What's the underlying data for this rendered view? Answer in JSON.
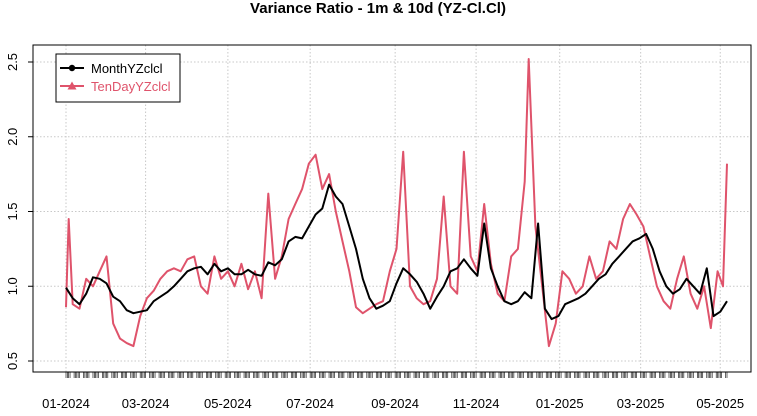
{
  "chart_data": {
    "type": "line",
    "title": "Variance Ratio - 1m & 10d (YZ-Cl.Cl)",
    "xlabel": "",
    "ylabel": "",
    "xlim": [
      "2023-12-28",
      "2025-05-08"
    ],
    "ylim": [
      0.5,
      2.6
    ],
    "yticks": [
      0.5,
      1.0,
      1.5,
      2.0,
      2.5
    ],
    "ytick_labels": [
      "0.5",
      "1.0",
      "1.5",
      "2.0",
      "2.5"
    ],
    "xtick_dates": [
      "2024-01-02",
      "2024-03-01",
      "2024-05-01",
      "2024-07-01",
      "2024-09-02",
      "2024-11-01",
      "2025-01-02",
      "2025-03-03",
      "2025-05-01"
    ],
    "xtick_labels": [
      "01-2024",
      "03-2024",
      "05-2024",
      "07-2024",
      "09-2024",
      "11-2024",
      "01-2025",
      "03-2025",
      "05-2025"
    ],
    "grid": true,
    "legend_position": "top-left",
    "series": [
      {
        "name": "MonthYZclcl",
        "color": "#000000",
        "marker": "circle",
        "points": [
          [
            "2024-01-02",
            0.99
          ],
          [
            "2024-01-07",
            0.92
          ],
          [
            "2024-01-12",
            0.88
          ],
          [
            "2024-01-17",
            0.95
          ],
          [
            "2024-01-22",
            1.06
          ],
          [
            "2024-01-27",
            1.05
          ],
          [
            "2024-02-01",
            1.02
          ],
          [
            "2024-02-06",
            0.93
          ],
          [
            "2024-02-11",
            0.9
          ],
          [
            "2024-02-16",
            0.84
          ],
          [
            "2024-02-21",
            0.82
          ],
          [
            "2024-02-26",
            0.83
          ],
          [
            "2024-03-02",
            0.84
          ],
          [
            "2024-03-07",
            0.9
          ],
          [
            "2024-03-12",
            0.93
          ],
          [
            "2024-03-17",
            0.96
          ],
          [
            "2024-03-22",
            1.0
          ],
          [
            "2024-03-27",
            1.05
          ],
          [
            "2024-04-01",
            1.1
          ],
          [
            "2024-04-06",
            1.12
          ],
          [
            "2024-04-11",
            1.13
          ],
          [
            "2024-04-16",
            1.08
          ],
          [
            "2024-04-21",
            1.15
          ],
          [
            "2024-04-26",
            1.1
          ],
          [
            "2024-05-01",
            1.12
          ],
          [
            "2024-05-06",
            1.08
          ],
          [
            "2024-05-11",
            1.08
          ],
          [
            "2024-05-16",
            1.11
          ],
          [
            "2024-05-21",
            1.08
          ],
          [
            "2024-05-26",
            1.07
          ],
          [
            "2024-05-31",
            1.16
          ],
          [
            "2024-06-05",
            1.14
          ],
          [
            "2024-06-10",
            1.18
          ],
          [
            "2024-06-15",
            1.3
          ],
          [
            "2024-06-20",
            1.33
          ],
          [
            "2024-06-25",
            1.32
          ],
          [
            "2024-06-30",
            1.4
          ],
          [
            "2024-07-05",
            1.48
          ],
          [
            "2024-07-10",
            1.52
          ],
          [
            "2024-07-15",
            1.68
          ],
          [
            "2024-07-20",
            1.6
          ],
          [
            "2024-07-25",
            1.55
          ],
          [
            "2024-07-30",
            1.4
          ],
          [
            "2024-08-04",
            1.25
          ],
          [
            "2024-08-09",
            1.05
          ],
          [
            "2024-08-14",
            0.92
          ],
          [
            "2024-08-19",
            0.85
          ],
          [
            "2024-08-24",
            0.87
          ],
          [
            "2024-08-29",
            0.9
          ],
          [
            "2024-09-03",
            1.02
          ],
          [
            "2024-09-08",
            1.12
          ],
          [
            "2024-09-13",
            1.08
          ],
          [
            "2024-09-18",
            1.03
          ],
          [
            "2024-09-23",
            0.95
          ],
          [
            "2024-09-28",
            0.85
          ],
          [
            "2024-10-03",
            0.93
          ],
          [
            "2024-10-08",
            1.0
          ],
          [
            "2024-10-13",
            1.1
          ],
          [
            "2024-10-18",
            1.12
          ],
          [
            "2024-10-23",
            1.18
          ],
          [
            "2024-10-28",
            1.12
          ],
          [
            "2024-11-02",
            1.07
          ],
          [
            "2024-11-07",
            1.42
          ],
          [
            "2024-11-12",
            1.12
          ],
          [
            "2024-11-17",
            1.0
          ],
          [
            "2024-11-22",
            0.9
          ],
          [
            "2024-11-27",
            0.88
          ],
          [
            "2024-12-02",
            0.9
          ],
          [
            "2024-12-07",
            0.96
          ],
          [
            "2024-12-12",
            0.92
          ],
          [
            "2024-12-17",
            1.42
          ],
          [
            "2024-12-22",
            0.85
          ],
          [
            "2024-12-27",
            0.78
          ],
          [
            "2025-01-01",
            0.8
          ],
          [
            "2025-01-06",
            0.88
          ],
          [
            "2025-01-11",
            0.9
          ],
          [
            "2025-01-16",
            0.92
          ],
          [
            "2025-01-21",
            0.95
          ],
          [
            "2025-01-26",
            1.0
          ],
          [
            "2025-01-31",
            1.05
          ],
          [
            "2025-02-05",
            1.08
          ],
          [
            "2025-02-10",
            1.15
          ],
          [
            "2025-02-15",
            1.2
          ],
          [
            "2025-02-20",
            1.25
          ],
          [
            "2025-02-25",
            1.3
          ],
          [
            "2025-03-02",
            1.32
          ],
          [
            "2025-03-07",
            1.35
          ],
          [
            "2025-03-12",
            1.25
          ],
          [
            "2025-03-17",
            1.1
          ],
          [
            "2025-03-22",
            1.0
          ],
          [
            "2025-03-27",
            0.95
          ],
          [
            "2025-04-01",
            0.98
          ],
          [
            "2025-04-06",
            1.05
          ],
          [
            "2025-04-11",
            1.0
          ],
          [
            "2025-04-16",
            0.95
          ],
          [
            "2025-04-21",
            1.12
          ],
          [
            "2025-04-26",
            0.8
          ],
          [
            "2025-05-01",
            0.83
          ],
          [
            "2025-05-06",
            0.9
          ]
        ]
      },
      {
        "name": "TenDayYZclcl",
        "color": "#DF536B",
        "marker": "triangle",
        "points": [
          [
            "2024-01-02",
            0.86
          ],
          [
            "2024-01-04",
            1.45
          ],
          [
            "2024-01-07",
            0.88
          ],
          [
            "2024-01-12",
            0.85
          ],
          [
            "2024-01-17",
            1.05
          ],
          [
            "2024-01-22",
            1.0
          ],
          [
            "2024-01-27",
            1.1
          ],
          [
            "2024-02-01",
            1.2
          ],
          [
            "2024-02-06",
            0.75
          ],
          [
            "2024-02-11",
            0.65
          ],
          [
            "2024-02-16",
            0.62
          ],
          [
            "2024-02-21",
            0.6
          ],
          [
            "2024-02-26",
            0.8
          ],
          [
            "2024-03-02",
            0.92
          ],
          [
            "2024-03-07",
            0.97
          ],
          [
            "2024-03-12",
            1.05
          ],
          [
            "2024-03-17",
            1.1
          ],
          [
            "2024-03-22",
            1.12
          ],
          [
            "2024-03-27",
            1.1
          ],
          [
            "2024-04-01",
            1.18
          ],
          [
            "2024-04-06",
            1.2
          ],
          [
            "2024-04-11",
            1.0
          ],
          [
            "2024-04-16",
            0.95
          ],
          [
            "2024-04-21",
            1.2
          ],
          [
            "2024-04-26",
            1.05
          ],
          [
            "2024-05-01",
            1.1
          ],
          [
            "2024-05-06",
            1.0
          ],
          [
            "2024-05-11",
            1.15
          ],
          [
            "2024-05-16",
            0.98
          ],
          [
            "2024-05-21",
            1.1
          ],
          [
            "2024-05-26",
            0.92
          ],
          [
            "2024-05-31",
            1.62
          ],
          [
            "2024-06-05",
            1.05
          ],
          [
            "2024-06-10",
            1.2
          ],
          [
            "2024-06-15",
            1.45
          ],
          [
            "2024-06-20",
            1.55
          ],
          [
            "2024-06-25",
            1.65
          ],
          [
            "2024-06-30",
            1.82
          ],
          [
            "2024-07-05",
            1.88
          ],
          [
            "2024-07-10",
            1.65
          ],
          [
            "2024-07-15",
            1.75
          ],
          [
            "2024-07-20",
            1.5
          ],
          [
            "2024-07-25",
            1.3
          ],
          [
            "2024-07-30",
            1.1
          ],
          [
            "2024-08-04",
            0.86
          ],
          [
            "2024-08-09",
            0.82
          ],
          [
            "2024-08-14",
            0.85
          ],
          [
            "2024-08-19",
            0.88
          ],
          [
            "2024-08-24",
            0.9
          ],
          [
            "2024-08-29",
            1.1
          ],
          [
            "2024-09-03",
            1.25
          ],
          [
            "2024-09-08",
            1.9
          ],
          [
            "2024-09-13",
            1.0
          ],
          [
            "2024-09-18",
            0.92
          ],
          [
            "2024-09-23",
            0.88
          ],
          [
            "2024-09-28",
            0.9
          ],
          [
            "2024-10-03",
            1.05
          ],
          [
            "2024-10-08",
            1.6
          ],
          [
            "2024-10-13",
            1.0
          ],
          [
            "2024-10-18",
            0.95
          ],
          [
            "2024-10-23",
            1.9
          ],
          [
            "2024-10-28",
            1.2
          ],
          [
            "2024-11-02",
            1.1
          ],
          [
            "2024-11-07",
            1.55
          ],
          [
            "2024-11-12",
            1.15
          ],
          [
            "2024-11-17",
            0.95
          ],
          [
            "2024-11-22",
            0.9
          ],
          [
            "2024-11-27",
            1.2
          ],
          [
            "2024-12-02",
            1.25
          ],
          [
            "2024-12-07",
            1.7
          ],
          [
            "2024-12-10",
            2.52
          ],
          [
            "2024-12-15",
            1.4
          ],
          [
            "2024-12-20",
            1.0
          ],
          [
            "2024-12-25",
            0.6
          ],
          [
            "2024-12-30",
            0.75
          ],
          [
            "2025-01-04",
            1.1
          ],
          [
            "2025-01-09",
            1.05
          ],
          [
            "2025-01-14",
            0.95
          ],
          [
            "2025-01-19",
            1.0
          ],
          [
            "2025-01-24",
            1.2
          ],
          [
            "2025-01-29",
            1.05
          ],
          [
            "2025-02-03",
            1.1
          ],
          [
            "2025-02-08",
            1.3
          ],
          [
            "2025-02-13",
            1.25
          ],
          [
            "2025-02-18",
            1.45
          ],
          [
            "2025-02-23",
            1.55
          ],
          [
            "2025-02-28",
            1.48
          ],
          [
            "2025-03-05",
            1.4
          ],
          [
            "2025-03-10",
            1.2
          ],
          [
            "2025-03-15",
            1.0
          ],
          [
            "2025-03-20",
            0.9
          ],
          [
            "2025-03-25",
            0.85
          ],
          [
            "2025-03-30",
            1.05
          ],
          [
            "2025-04-04",
            1.2
          ],
          [
            "2025-04-09",
            0.95
          ],
          [
            "2025-04-14",
            0.85
          ],
          [
            "2025-04-19",
            1.0
          ],
          [
            "2025-04-24",
            0.72
          ],
          [
            "2025-04-29",
            1.1
          ],
          [
            "2025-05-03",
            1.0
          ],
          [
            "2025-05-06",
            1.82
          ]
        ]
      }
    ]
  }
}
